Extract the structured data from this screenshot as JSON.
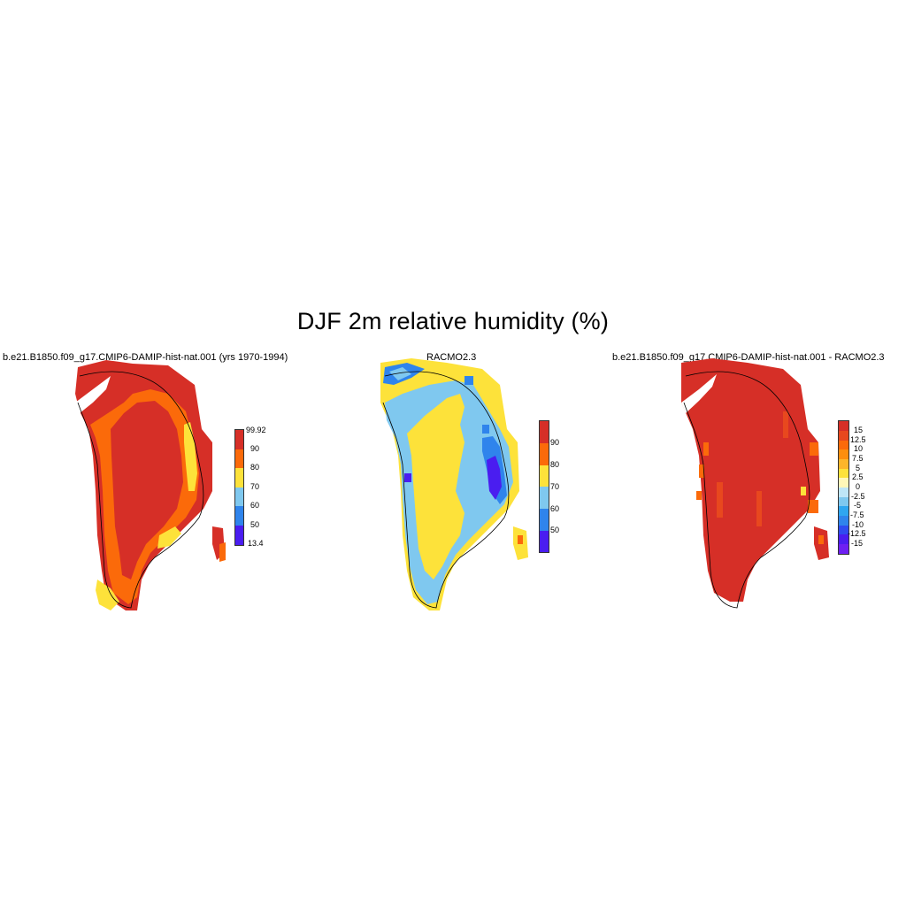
{
  "title": "DJF 2m relative humidity (%)",
  "panels": [
    {
      "title": "b.e21.B1850.f09_g17.CMIP6-DAMIP-hist-nat.001 (yrs 1970-1994)",
      "colorbar": {
        "labels": [
          "99.92",
          "90",
          "80",
          "70",
          "60",
          "50",
          "13.4"
        ],
        "colors": [
          "#d62f27",
          "#fb6a0a",
          "#fde23a",
          "#7fc8ef",
          "#2f84ec",
          "#4a1df0"
        ]
      }
    },
    {
      "title": "RACMO2.3",
      "colorbar": {
        "labels": [
          "90",
          "80",
          "70",
          "60",
          "50"
        ],
        "colors": [
          "#d62f27",
          "#fb6a0a",
          "#fde23a",
          "#7fc8ef",
          "#2f84ec",
          "#4a1df0"
        ]
      }
    },
    {
      "title": "b.e21.B1850.f09_g17.CMIP6-DAMIP-hist-nat.001 - RACMO2.3",
      "colorbar": {
        "labels": [
          "15",
          "12.5",
          "10",
          "7.5",
          "5",
          "2.5",
          "0",
          "-2.5",
          "-5",
          "-7.5",
          "-10",
          "-12.5",
          "-15"
        ],
        "colors": [
          "#d62f27",
          "#e8481e",
          "#fb6a0a",
          "#fd8e0e",
          "#fdb52a",
          "#fde23a",
          "#fff7b8",
          "#bfe6f7",
          "#7fc8ef",
          "#2fa6f0",
          "#2f84ec",
          "#2f4bf0",
          "#4a1df0",
          "#6e1ff2"
        ]
      }
    }
  ]
}
